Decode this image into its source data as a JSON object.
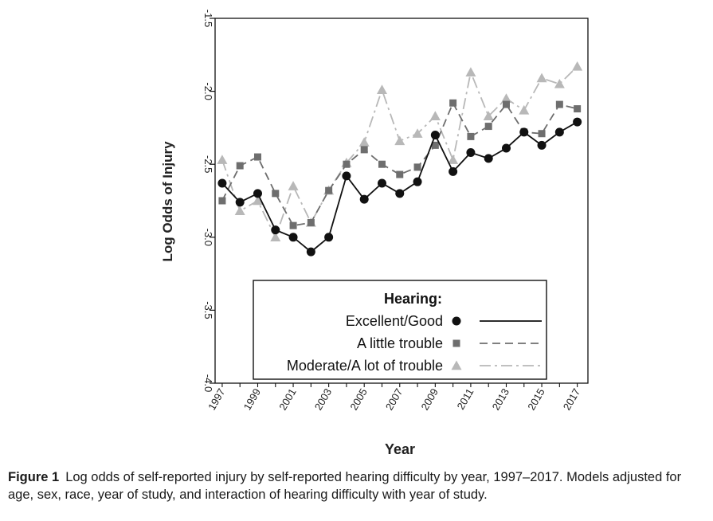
{
  "chart_data": {
    "type": "line",
    "title": "",
    "xlabel": "Year",
    "ylabel": "Log Odds of Injury",
    "x": [
      1997,
      1998,
      1999,
      2000,
      2001,
      2002,
      2003,
      2004,
      2005,
      2006,
      2007,
      2008,
      2009,
      2010,
      2011,
      2012,
      2013,
      2014,
      2015,
      2016,
      2017
    ],
    "xlim": [
      1996.6,
      2017.6
    ],
    "ylim": [
      -4.0,
      -1.5
    ],
    "x_ticks": [
      "1997",
      "1999",
      "2001",
      "2003",
      "2005",
      "2007",
      "2009",
      "2011",
      "2013",
      "2015",
      "2017"
    ],
    "y_ticks": [
      "-1.5",
      "-2.0",
      "-2.5",
      "-3.0",
      "-3.5",
      "-4.0"
    ],
    "legend": {
      "title": "Hearing:",
      "placement": "bottom-right"
    },
    "series": [
      {
        "name": "Excellent/Good",
        "color": "#111111",
        "marker": "circle",
        "line_style": "solid",
        "values": [
          -2.63,
          -2.76,
          -2.7,
          -2.95,
          -3.0,
          -3.1,
          -3.0,
          -2.58,
          -2.74,
          -2.63,
          -2.7,
          -2.62,
          -2.3,
          -2.55,
          -2.42,
          -2.46,
          -2.39,
          -2.28,
          -2.37,
          -2.28,
          -2.21
        ]
      },
      {
        "name": "A little trouble",
        "color": "#6e6e6e",
        "marker": "square",
        "line_style": "dashed",
        "values": [
          -2.75,
          -2.51,
          -2.45,
          -2.7,
          -2.92,
          -2.9,
          -2.68,
          -2.5,
          -2.4,
          -2.5,
          -2.57,
          -2.52,
          -2.37,
          -2.08,
          -2.31,
          -2.24,
          -2.09,
          -2.28,
          -2.29,
          -2.09,
          -2.12
        ]
      },
      {
        "name": "Moderate/A lot of trouble",
        "color": "#b8b8b8",
        "marker": "triangle",
        "line_style": "dashdot",
        "values": [
          -2.47,
          -2.82,
          -2.75,
          -3.0,
          -2.65,
          -2.9,
          -2.68,
          -2.49,
          -2.35,
          -1.99,
          -2.34,
          -2.29,
          -2.17,
          -2.47,
          -1.87,
          -2.17,
          -2.05,
          -2.13,
          -1.91,
          -1.95,
          -1.83
        ]
      }
    ]
  },
  "caption": {
    "label": "Figure 1",
    "text": "Log odds of self-reported injury by self-reported hearing difficulty by year, 1997–2017. Models adjusted for age, sex, race, year of study, and interaction of hearing difficulty with year of study."
  }
}
